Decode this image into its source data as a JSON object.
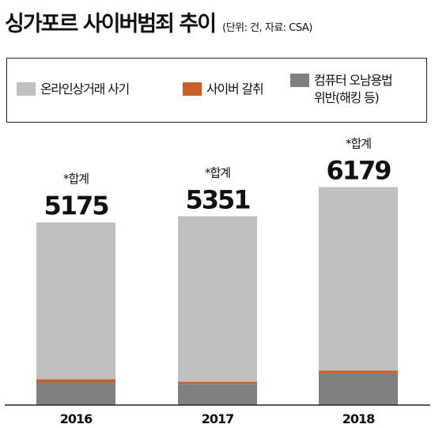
{
  "title": "싱가포르 사이버범죄 추이",
  "subtitle": "(단위: 건, 자료: CSA)",
  "total_label": "*합계",
  "colors": {
    "online_fraud": "#c0c0c0",
    "cyber_extortion": "#c8602a",
    "computer_misuse": "#808080",
    "axis": "#222222"
  },
  "chart_data": {
    "type": "bar",
    "stacked": true,
    "categories": [
      "2016",
      "2017",
      "2018"
    ],
    "series": [
      {
        "name": "컴퓨터 오남용법 위반(해킹 등)",
        "values": [
          650,
          600,
          900
        ]
      },
      {
        "name": "사이버 갈취",
        "values": [
          80,
          60,
          80
        ]
      },
      {
        "name": "온라인상거래 사기",
        "values": [
          4445,
          4691,
          5199
        ]
      }
    ],
    "totals": [
      5175,
      5351,
      6179
    ],
    "legend": {
      "position": "top",
      "items": [
        {
          "label": "온라인상거래 사기"
        },
        {
          "label": "사이버 갈취"
        },
        {
          "label": "컴퓨터 오남용법\n위반(해킹 등)"
        }
      ]
    },
    "grid": false
  }
}
